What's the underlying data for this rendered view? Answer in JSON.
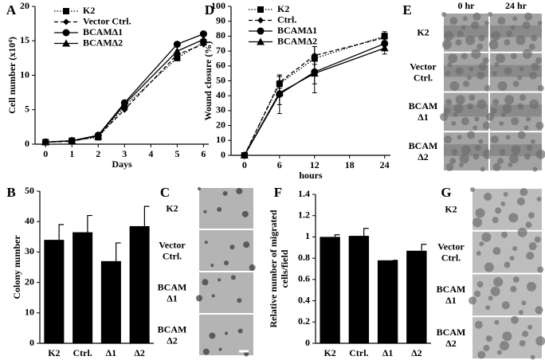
{
  "chart_data": [
    {
      "type": "line",
      "label": "A",
      "x_label": "Days",
      "y_label": "Cell number (x10⁴)",
      "xlim": [
        -0.4,
        6.2
      ],
      "xticks": [
        0,
        1,
        2,
        3,
        4,
        5,
        6
      ],
      "ylim": [
        0,
        20
      ],
      "yticks": [
        0,
        5,
        10,
        15,
        20
      ],
      "x": [
        0,
        1,
        2,
        3,
        5,
        6
      ],
      "series": [
        {
          "name": "K2",
          "color": "#000000",
          "dash": "dotted",
          "marker": "square",
          "values": [
            0.3,
            0.5,
            1.0,
            5.5,
            12.5,
            14.8
          ]
        },
        {
          "name": "Vector Ctrl.",
          "color": "#000000",
          "dash": "dashed",
          "marker": "diamond",
          "values": [
            0.3,
            0.4,
            1.2,
            5.0,
            13.0,
            14.5
          ]
        },
        {
          "name": "BCAMΔ1",
          "color": "#000000",
          "dash": "solid",
          "marker": "circle",
          "values": [
            0.3,
            0.5,
            1.3,
            6.0,
            14.5,
            16.0
          ]
        },
        {
          "name": "BCAMΔ2",
          "color": "#000000",
          "dash": "solid",
          "marker": "triangle",
          "values": [
            0.3,
            0.5,
            1.2,
            5.8,
            13.5,
            15.2
          ]
        }
      ]
    },
    {
      "type": "bar",
      "label": "B",
      "y_label": "Colony number",
      "color": "#000000",
      "categories": [
        "K2",
        "Ctrl.",
        "Δ1",
        "Δ2"
      ],
      "values": [
        34,
        36.5,
        27,
        38.5
      ],
      "errors": [
        5,
        5.5,
        6,
        6.5
      ],
      "ylim": [
        0,
        50
      ],
      "yticks": [
        0,
        10,
        20,
        30,
        40,
        50
      ]
    },
    {
      "type": "line",
      "label": "D",
      "x_label": "hours",
      "y_label": "Wound closure (%)",
      "xlim": [
        -2.3,
        25
      ],
      "xticks": [
        0,
        6,
        12,
        18,
        24
      ],
      "ylim": [
        0,
        100
      ],
      "yticks": [
        0,
        10,
        20,
        30,
        40,
        50,
        60,
        70,
        80,
        90,
        100
      ],
      "x": [
        0,
        6,
        12,
        24
      ],
      "series": [
        {
          "name": "K2",
          "color": "#000000",
          "dash": "dotted",
          "marker": "square",
          "values": [
            0,
            48,
            65,
            80
          ],
          "errors": [
            0,
            5,
            8,
            3
          ]
        },
        {
          "name": "Ctrl.",
          "color": "#000000",
          "dash": "dashed",
          "marker": "diamond",
          "values": [
            0,
            49,
            67,
            79
          ],
          "errors": [
            0,
            4,
            6,
            3
          ]
        },
        {
          "name": "BCAMΔ1",
          "color": "#000000",
          "dash": "solid",
          "marker": "circle",
          "values": [
            0,
            41,
            56,
            75
          ],
          "errors": [
            0,
            13,
            8,
            4
          ]
        },
        {
          "name": "BCAMΔ2",
          "color": "#000000",
          "dash": "solid",
          "marker": "triangle",
          "values": [
            0,
            42,
            55,
            72
          ],
          "errors": [
            0,
            8,
            13,
            4
          ]
        }
      ]
    },
    {
      "type": "bar",
      "label": "F",
      "y_label": [
        "Relative number of migrated",
        "cells/field"
      ],
      "color": "#000000",
      "categories": [
        "K2",
        "Ctrl.",
        "Δ1",
        "Δ2"
      ],
      "values": [
        1.0,
        1.01,
        0.78,
        0.87
      ],
      "errors": [
        0.02,
        0.07,
        0,
        0.06
      ],
      "ylim": [
        0,
        1.4
      ],
      "yticks": [
        0,
        0.2,
        0.4,
        0.6,
        0.8,
        1,
        1.2,
        1.4
      ]
    }
  ],
  "image_panels": [
    {
      "label": "C",
      "rows": [
        [
          "K2"
        ],
        [
          "Vector",
          "Ctrl."
        ],
        [
          "BCAM",
          "Δ1"
        ],
        [
          "BCAM",
          "Δ2"
        ]
      ]
    },
    {
      "label": "E",
      "columns": [
        "0 hr",
        "24 hr"
      ],
      "rows": [
        [
          "K2"
        ],
        [
          "Vector",
          "Ctrl."
        ],
        [
          "BCAM",
          "Δ1"
        ],
        [
          "BCAM",
          "Δ2"
        ]
      ]
    },
    {
      "label": "G",
      "rows": [
        [
          "K2"
        ],
        [
          "Vector",
          "Ctrl."
        ],
        [
          "BCAM",
          "Δ1"
        ],
        [
          "BCAM",
          "Δ2"
        ]
      ]
    }
  ]
}
